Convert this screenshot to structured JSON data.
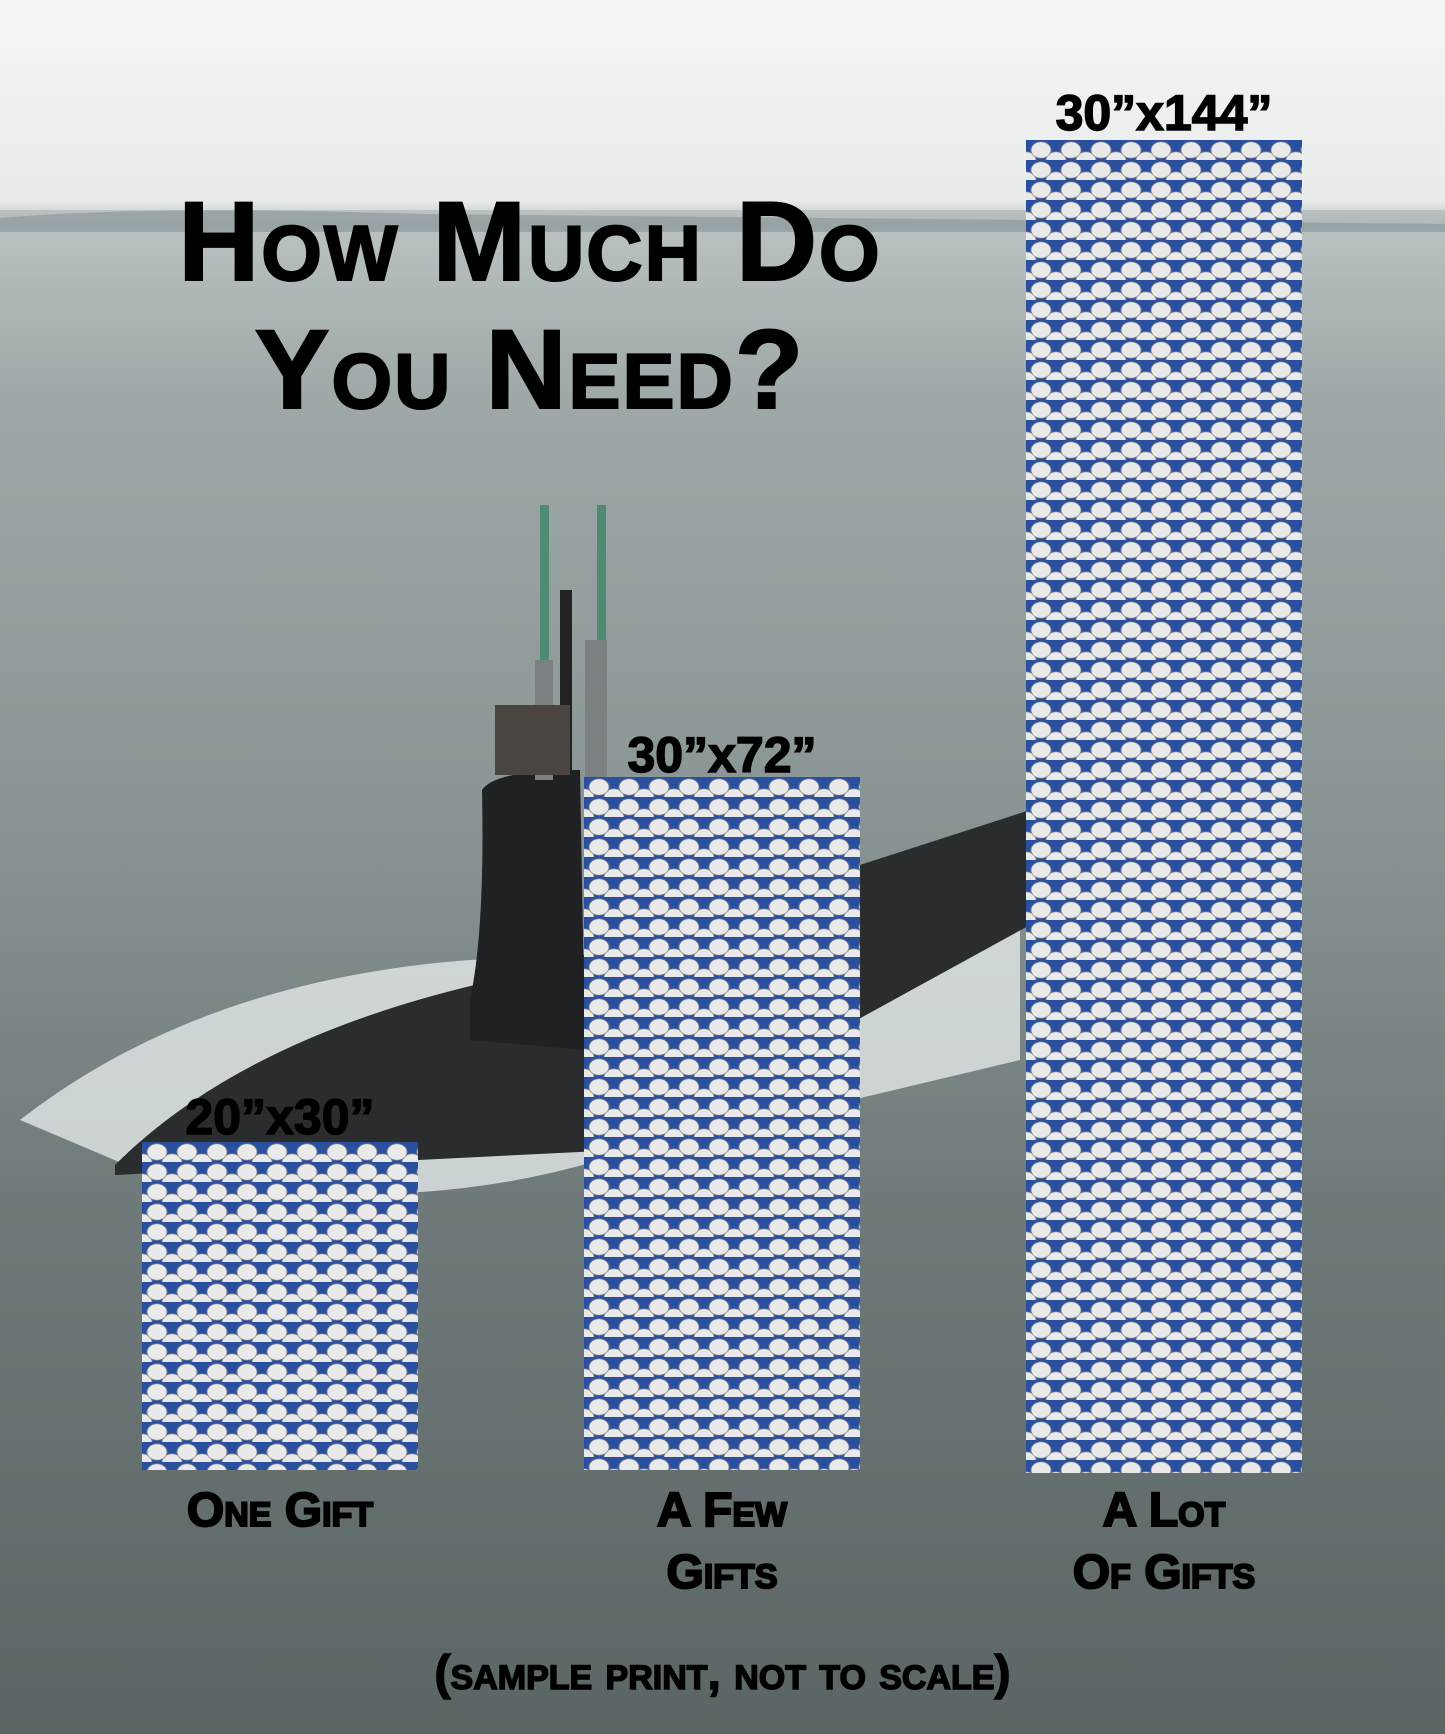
{
  "title": {
    "line1": "How Much Do",
    "line2": "You Need?"
  },
  "options": [
    {
      "size": "20”x30”",
      "label_line1": "One Gift",
      "label_line2": ""
    },
    {
      "size": "30”x72”",
      "label_line1": "A Few",
      "label_line2": "Gifts"
    },
    {
      "size": "30”x144”",
      "label_line1": "A Lot",
      "label_line2": "Of Gifts"
    }
  ],
  "footnote": "(sample print, not to scale)",
  "colors": {
    "pattern_blue": "#2b4f9f",
    "pattern_emblem": "#e9e9e9"
  },
  "background": "submarine-at-sea-photo"
}
